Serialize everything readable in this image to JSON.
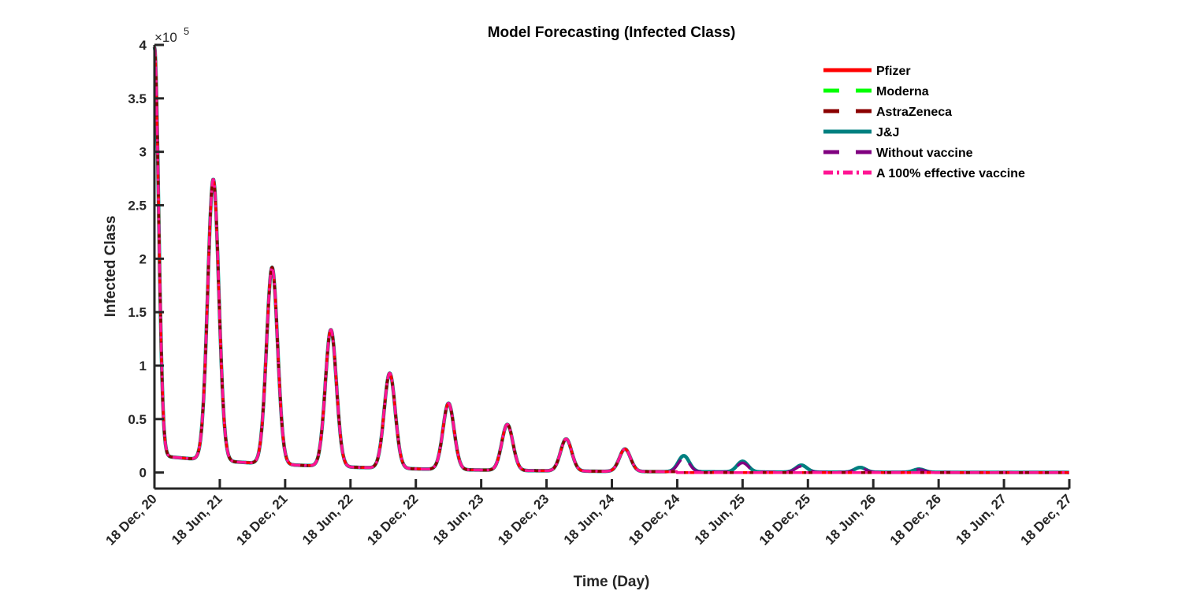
{
  "chart_data": {
    "type": "line",
    "title": "Model Forecasting (Infected Class)",
    "xlabel": "Time (Day)",
    "ylabel": "Infected Class",
    "y_exponent_base": "×10",
    "y_exponent_power": "5",
    "ylim": [
      -0.15,
      4.0
    ],
    "xlim": [
      0,
      7
    ],
    "y_ticks": [
      0,
      0.5,
      1,
      1.5,
      2,
      2.5,
      3,
      3.5,
      4
    ],
    "y_tick_labels": [
      "0",
      "0.5",
      "1",
      "1.5",
      "2",
      "2.5",
      "3",
      "3.5",
      "4"
    ],
    "x_tick_labels": [
      "18 Dec, 20",
      "18 Jun, 21",
      "18 Dec, 21",
      "18 Jun, 22",
      "18 Dec, 22",
      "18 Jun, 23",
      "18 Dec, 23",
      "18 Jun, 24",
      "18 Dec, 24",
      "18 Jun, 25",
      "18 Dec, 25",
      "18 Jun, 26",
      "18 Dec, 26",
      "18 Jun, 27",
      "18 Dec, 27"
    ],
    "peaks_without_vaccine": [
      {
        "t": 0.0,
        "y": 3.82
      },
      {
        "t": 0.45,
        "y": 2.63
      },
      {
        "t": 0.9,
        "y": 1.84
      },
      {
        "t": 1.35,
        "y": 1.28
      },
      {
        "t": 1.8,
        "y": 0.89
      },
      {
        "t": 2.25,
        "y": 0.62
      },
      {
        "t": 2.7,
        "y": 0.43
      },
      {
        "t": 3.15,
        "y": 0.3
      },
      {
        "t": 3.6,
        "y": 0.21
      },
      {
        "t": 4.05,
        "y": 0.15
      },
      {
        "t": 4.5,
        "y": 0.1
      },
      {
        "t": 4.95,
        "y": 0.065
      },
      {
        "t": 5.4,
        "y": 0.045
      },
      {
        "t": 5.85,
        "y": 0.03
      }
    ],
    "series": [
      {
        "name": "Pfizer",
        "color": "#ff0000",
        "style": "solid",
        "vaccine_start": 4.0,
        "residual_scale": 0.0
      },
      {
        "name": "Moderna",
        "color": "#00ff00",
        "style": "dashed",
        "vaccine_start": 4.0,
        "residual_scale": 0.0
      },
      {
        "name": "AstraZeneca",
        "color": "#8b0000",
        "style": "dashed",
        "vaccine_start": 4.0,
        "residual_scale": 0.0
      },
      {
        "name": "J&J",
        "color": "#008080",
        "style": "solid",
        "vaccine_start": 99,
        "residual_scale": 1.0
      },
      {
        "name": "Without vaccine",
        "color": "#800080",
        "style": "dashed",
        "vaccine_start": 99,
        "residual_scale": 0.85
      },
      {
        "name": "A 100% effective vaccine",
        "color": "#ff1493",
        "style": "dashdot",
        "vaccine_start": 4.0,
        "residual_scale": 0.0
      }
    ],
    "legend_position": "top-right",
    "grid": false
  }
}
